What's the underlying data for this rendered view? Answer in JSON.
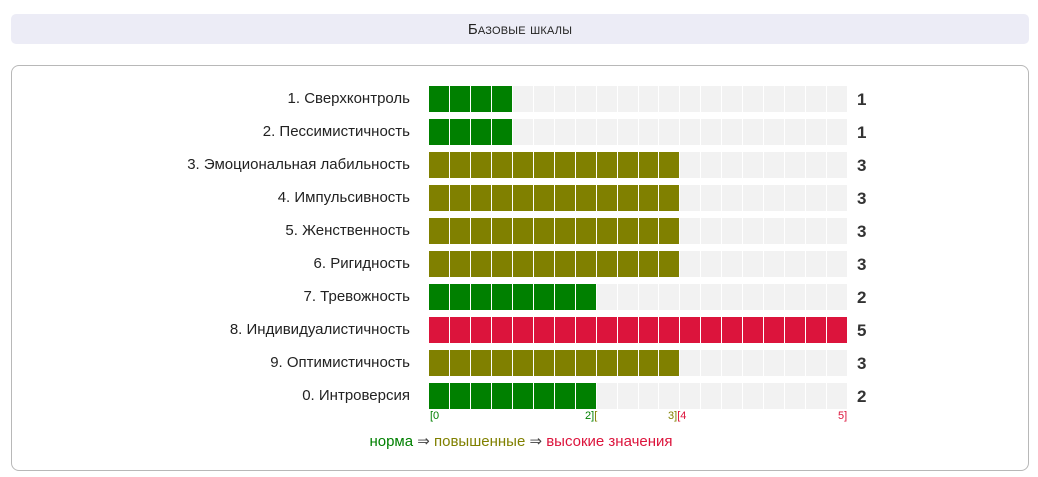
{
  "header": {
    "title": "Базовые шкалы"
  },
  "colors": {
    "norm": "#008000",
    "elevated": "#808000",
    "high": "#dc143c",
    "empty": "#f2f2f2"
  },
  "chart_data": {
    "type": "bar",
    "orientation": "horizontal",
    "categories": [
      "1. Сверхконтроль",
      "2. Пессимистичность",
      "3. Эмоциональная лабильность",
      "4. Импульсивность",
      "5. Женственность",
      "6. Ригидность",
      "7. Тревожность",
      "8. Индивидуалистичность",
      "9. Оптимистичность",
      "0. Интроверсия"
    ],
    "values": [
      1,
      1,
      3,
      3,
      3,
      3,
      2,
      5,
      3,
      2
    ],
    "filled_cells": [
      4,
      4,
      12,
      12,
      12,
      12,
      8,
      20,
      12,
      8
    ],
    "total_cells": 20,
    "xlim": [
      0,
      5
    ],
    "scale_ticks": [
      {
        "label": "[0",
        "color": "norm"
      },
      {
        "label": "2][",
        "color": "norm",
        "color2": "elevated"
      },
      {
        "label": "3][4",
        "color": "elevated",
        "color2": "high"
      },
      {
        "label": "5]",
        "color": "high"
      }
    ],
    "legend": [
      {
        "label": "норма",
        "color": "norm"
      },
      {
        "label": "повышенные",
        "color": "elevated"
      },
      {
        "label": "высокие значения",
        "color": "high"
      }
    ],
    "legend_separator": " ⇒ "
  }
}
